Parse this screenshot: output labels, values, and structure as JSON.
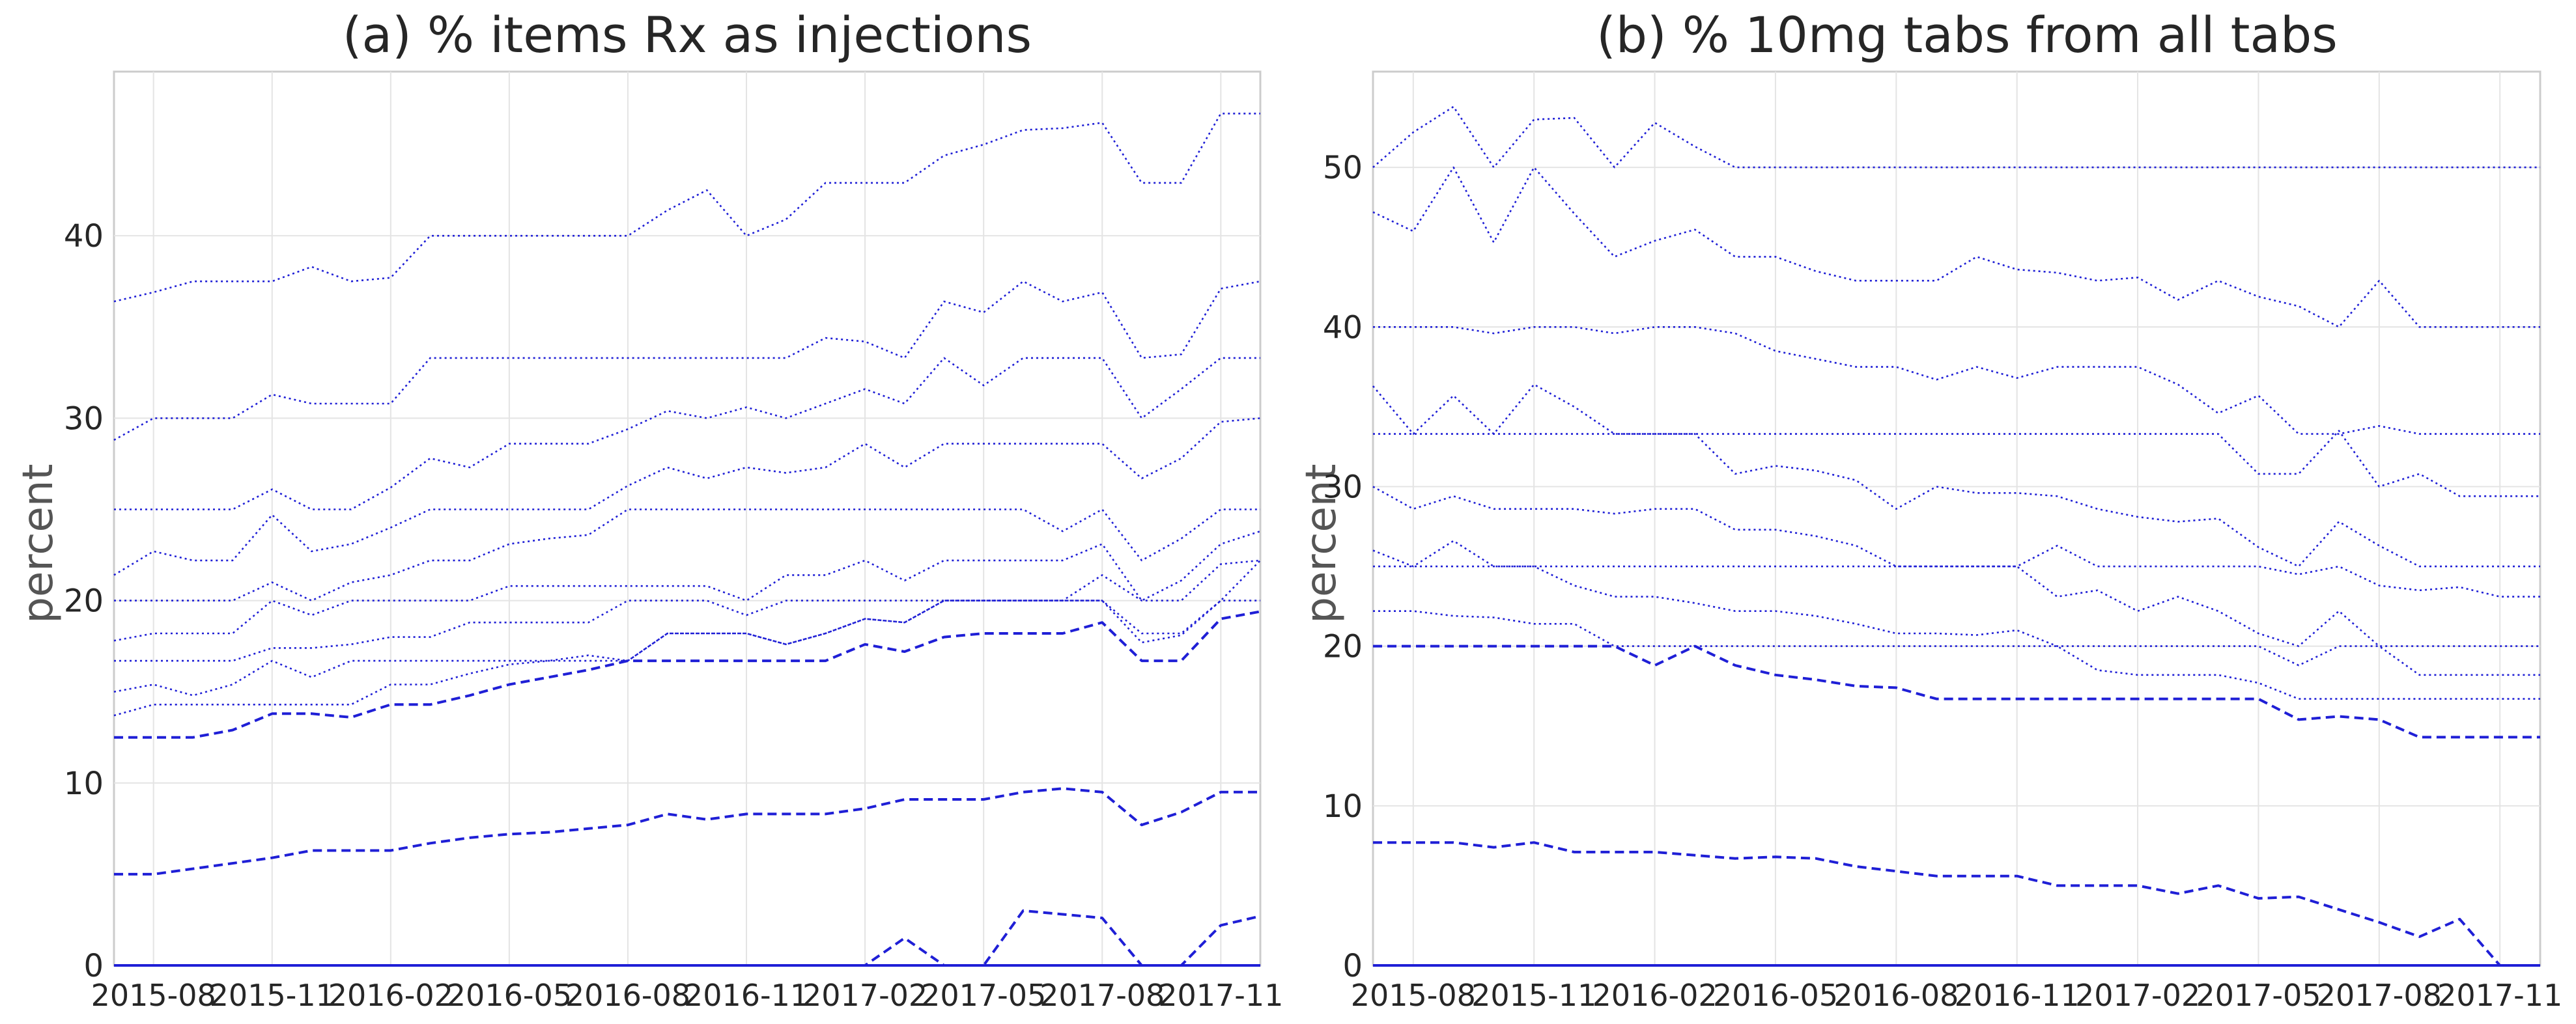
{
  "chart_data": [
    {
      "type": "line",
      "title": "(a) % items Rx as injections",
      "ylabel": "percent",
      "xlabel": "",
      "ylim": [
        0,
        49
      ],
      "yticks": [
        0,
        10,
        20,
        30,
        40
      ],
      "grid": true,
      "categories": [
        "2015-07",
        "2015-08",
        "2015-09",
        "2015-10",
        "2015-11",
        "2015-12",
        "2016-01",
        "2016-02",
        "2016-03",
        "2016-04",
        "2016-05",
        "2016-06",
        "2016-07",
        "2016-08",
        "2016-09",
        "2016-10",
        "2016-11",
        "2016-12",
        "2017-01",
        "2017-02",
        "2017-03",
        "2017-04",
        "2017-05",
        "2017-06",
        "2017-07",
        "2017-08",
        "2017-09",
        "2017-10",
        "2017-11",
        "2017-12"
      ],
      "xticklabels": [
        "2015-08",
        "2015-11",
        "2016-02",
        "2016-05",
        "2016-08",
        "2016-11",
        "2017-02",
        "2017-05",
        "2017-08",
        "2017-11"
      ],
      "series": [
        {
          "style": "solid",
          "values": [
            0,
            0,
            0,
            0,
            0,
            0,
            0,
            0,
            0,
            0,
            0,
            0,
            0,
            0,
            0,
            0,
            0,
            0,
            0,
            0,
            0,
            0,
            0,
            0,
            0,
            0,
            0,
            0,
            0,
            0
          ]
        },
        {
          "style": "dashed",
          "values": [
            0,
            0,
            0,
            0,
            0,
            0,
            0,
            0,
            0,
            0,
            0,
            0,
            0,
            0,
            0,
            0,
            0,
            0,
            0,
            0,
            1.5,
            0,
            0,
            3,
            2.8,
            2.6,
            0,
            0,
            2.2,
            2.7
          ]
        },
        {
          "style": "dashed",
          "values": [
            5,
            5,
            5.3,
            5.6,
            5.9,
            6.3,
            6.3,
            6.3,
            6.7,
            7,
            7.2,
            7.3,
            7.5,
            7.7,
            8.3,
            8,
            8.3,
            8.3,
            8.3,
            8.6,
            9.1,
            9.1,
            9.1,
            9.5,
            9.7,
            9.5,
            7.7,
            8.4,
            9.5,
            9.5
          ]
        },
        {
          "style": "dashed",
          "values": [
            12.5,
            12.5,
            12.5,
            12.9,
            13.8,
            13.8,
            13.6,
            14.3,
            14.3,
            14.8,
            15.4,
            15.8,
            16.2,
            16.7,
            16.7,
            16.7,
            16.7,
            16.7,
            16.7,
            17.6,
            17.2,
            18,
            18.2,
            18.2,
            18.2,
            18.8,
            16.7,
            16.7,
            19,
            19.4
          ]
        },
        {
          "style": "dotted",
          "values": [
            13.7,
            14.3,
            14.3,
            14.3,
            14.3,
            14.3,
            14.3,
            15.4,
            15.4,
            16,
            16.5,
            16.7,
            16.7,
            16.7,
            18.2,
            18.2,
            18.2,
            17.6,
            18.2,
            19,
            18.8,
            20,
            20,
            20,
            20,
            20,
            18.2,
            18.2,
            20,
            20
          ]
        },
        {
          "style": "dotted",
          "values": [
            15,
            15.4,
            14.8,
            15.4,
            16.7,
            15.8,
            16.7,
            16.7,
            16.7,
            16.7,
            16.7,
            16.7,
            17,
            16.7,
            18.2,
            18.2,
            18.2,
            17.6,
            18.2,
            19,
            18.8,
            20,
            20,
            20,
            20,
            20,
            17.7,
            18.1,
            20,
            22.2
          ]
        },
        {
          "style": "dotted",
          "values": [
            16.7,
            16.7,
            16.7,
            16.7,
            17.4,
            17.4,
            17.6,
            18,
            18,
            18.8,
            18.8,
            18.8,
            18.8,
            20,
            20,
            20,
            19.2,
            20,
            20,
            20,
            20,
            20,
            20,
            20,
            20,
            21.4,
            20,
            20,
            22,
            22.2
          ]
        },
        {
          "style": "dotted",
          "values": [
            17.8,
            18.2,
            18.2,
            18.2,
            20,
            19.2,
            20,
            20,
            20,
            20,
            20.8,
            20.8,
            20.8,
            20.8,
            20.8,
            20.8,
            20,
            21.4,
            21.4,
            22.2,
            21.1,
            22.2,
            22.2,
            22.2,
            22.2,
            23.1,
            20,
            21.1,
            23.1,
            23.8
          ]
        },
        {
          "style": "dotted",
          "values": [
            20,
            20,
            20,
            20,
            21,
            20,
            21,
            21.4,
            22.2,
            22.2,
            23.1,
            23.4,
            23.6,
            25,
            25,
            25,
            25,
            25,
            25,
            25,
            25,
            25,
            25,
            25,
            23.8,
            25,
            22.2,
            23.4,
            25,
            25
          ]
        },
        {
          "style": "dotted",
          "values": [
            21.4,
            22.7,
            22.2,
            22.2,
            24.7,
            22.7,
            23.1,
            24,
            25,
            25,
            25,
            25,
            25,
            26.3,
            27.3,
            26.7,
            27.3,
            27,
            27.3,
            28.6,
            27.3,
            28.6,
            28.6,
            28.6,
            28.6,
            28.6,
            26.7,
            27.8,
            29.8,
            30
          ]
        },
        {
          "style": "dotted",
          "values": [
            25,
            25,
            25,
            25,
            26.1,
            25,
            25,
            26.2,
            27.8,
            27.3,
            28.6,
            28.6,
            28.6,
            29.4,
            30.4,
            30,
            30.6,
            30,
            30.8,
            31.6,
            30.8,
            33.3,
            31.8,
            33.3,
            33.3,
            33.3,
            30,
            31.6,
            33.3,
            33.3
          ]
        },
        {
          "style": "dotted",
          "values": [
            28.8,
            30,
            30,
            30,
            31.3,
            30.8,
            30.8,
            30.8,
            33.3,
            33.3,
            33.3,
            33.3,
            33.3,
            33.3,
            33.3,
            33.3,
            33.3,
            33.3,
            34.4,
            34.2,
            33.3,
            36.4,
            35.8,
            37.5,
            36.4,
            36.9,
            33.3,
            33.5,
            37.1,
            37.5
          ]
        },
        {
          "style": "dotted",
          "values": [
            36.4,
            36.9,
            37.5,
            37.5,
            37.5,
            38.3,
            37.5,
            37.7,
            40,
            40,
            40,
            40,
            40,
            40,
            41.4,
            42.5,
            40,
            40.9,
            42.9,
            42.9,
            42.9,
            44.4,
            45,
            45.8,
            45.9,
            46.2,
            42.9,
            42.9,
            46.7,
            46.7
          ]
        }
      ]
    },
    {
      "type": "line",
      "title": "(b) % 10mg tabs from all tabs",
      "ylabel": "percent",
      "xlabel": "",
      "ylim": [
        0,
        56
      ],
      "yticks": [
        0,
        10,
        20,
        30,
        40,
        50
      ],
      "grid": true,
      "categories": [
        "2015-07",
        "2015-08",
        "2015-09",
        "2015-10",
        "2015-11",
        "2015-12",
        "2016-01",
        "2016-02",
        "2016-03",
        "2016-04",
        "2016-05",
        "2016-06",
        "2016-07",
        "2016-08",
        "2016-09",
        "2016-10",
        "2016-11",
        "2016-12",
        "2017-01",
        "2017-02",
        "2017-03",
        "2017-04",
        "2017-05",
        "2017-06",
        "2017-07",
        "2017-08",
        "2017-09",
        "2017-10",
        "2017-11",
        "2017-12"
      ],
      "xticklabels": [
        "2015-08",
        "2015-11",
        "2016-02",
        "2016-05",
        "2016-08",
        "2016-11",
        "2017-02",
        "2017-05",
        "2017-08",
        "2017-11"
      ],
      "series": [
        {
          "style": "solid",
          "values": [
            0,
            0,
            0,
            0,
            0,
            0,
            0,
            0,
            0,
            0,
            0,
            0,
            0,
            0,
            0,
            0,
            0,
            0,
            0,
            0,
            0,
            0,
            0,
            0,
            0,
            0,
            0,
            0,
            0,
            0
          ]
        },
        {
          "style": "dashed",
          "values": [
            7.7,
            7.7,
            7.7,
            7.4,
            7.7,
            7.1,
            7.1,
            7.1,
            6.9,
            6.7,
            6.8,
            6.7,
            6.2,
            5.9,
            5.6,
            5.6,
            5.6,
            5,
            5,
            5,
            4.5,
            5,
            4.2,
            4.3,
            3.5,
            2.7,
            1.8,
            2.9,
            0,
            0
          ]
        },
        {
          "style": "dashed",
          "values": [
            20,
            20,
            20,
            20,
            20,
            20,
            20,
            18.8,
            20,
            18.8,
            18.2,
            17.9,
            17.5,
            17.4,
            16.7,
            16.7,
            16.7,
            16.7,
            16.7,
            16.7,
            16.7,
            16.7,
            16.7,
            15.4,
            15.6,
            15.4,
            14.3,
            14.3,
            14.3,
            14.3
          ]
        },
        {
          "style": "dotted",
          "values": [
            22.2,
            22.2,
            21.9,
            21.8,
            21.4,
            21.4,
            20,
            20,
            20,
            20,
            20,
            20,
            20,
            20,
            20,
            20,
            20,
            20,
            18.5,
            18.2,
            18.2,
            18.2,
            17.7,
            16.7,
            16.7,
            16.7,
            16.7,
            16.7,
            16.7,
            16.7
          ]
        },
        {
          "style": "dotted",
          "values": [
            26,
            25,
            26.6,
            25,
            25,
            23.8,
            23.1,
            23.1,
            22.7,
            22.2,
            22.2,
            21.9,
            21.4,
            20.8,
            20.8,
            20.7,
            21,
            20,
            20,
            20,
            20,
            20,
            20,
            18.8,
            20,
            20,
            18.2,
            18.2,
            18.2,
            18.2
          ]
        },
        {
          "style": "dotted",
          "values": [
            25,
            25,
            25,
            25,
            25,
            25,
            25,
            25,
            25,
            25,
            25,
            25,
            25,
            25,
            25,
            25,
            25,
            26.3,
            25,
            25,
            25,
            25,
            25,
            24.5,
            25,
            23.8,
            23.5,
            23.7,
            23.1,
            23.1
          ]
        },
        {
          "style": "dotted",
          "values": [
            30,
            28.6,
            29.4,
            28.6,
            28.6,
            28.6,
            28.3,
            28.6,
            28.6,
            27.3,
            27.3,
            26.9,
            26.3,
            25,
            25,
            25,
            25,
            23.1,
            23.5,
            22.2,
            23.1,
            22.2,
            20.8,
            20,
            22.2,
            20,
            20,
            20,
            20,
            20
          ]
        },
        {
          "style": "dotted",
          "values": [
            36.3,
            33.3,
            35.7,
            33.3,
            36.4,
            35,
            33.3,
            33.3,
            33.3,
            30.8,
            31.3,
            31,
            30.4,
            28.6,
            30,
            29.6,
            29.6,
            29.4,
            28.6,
            28.1,
            27.8,
            28,
            26.2,
            25,
            27.8,
            26.3,
            25,
            25,
            25,
            25
          ]
        },
        {
          "style": "dotted",
          "values": [
            33.3,
            33.3,
            33.3,
            33.3,
            33.3,
            33.3,
            33.3,
            33.3,
            33.3,
            33.3,
            33.3,
            33.3,
            33.3,
            33.3,
            33.3,
            33.3,
            33.3,
            33.3,
            33.3,
            33.3,
            33.3,
            33.3,
            30.8,
            30.8,
            33.5,
            30,
            30.8,
            29.4,
            29.4,
            29.4
          ]
        },
        {
          "style": "dotted",
          "values": [
            40,
            40,
            40,
            39.6,
            40,
            40,
            39.6,
            40,
            40,
            39.6,
            38.5,
            38,
            37.5,
            37.5,
            36.7,
            37.5,
            36.8,
            37.5,
            37.5,
            37.5,
            36.4,
            34.6,
            35.7,
            33.3,
            33.3,
            33.8,
            33.3,
            33.3,
            33.3,
            33.3
          ]
        },
        {
          "style": "dotted",
          "values": [
            47.2,
            46,
            50,
            45.3,
            50,
            47.1,
            44.4,
            45.4,
            46.1,
            44.4,
            44.4,
            43.5,
            42.9,
            42.9,
            42.9,
            44.4,
            43.6,
            43.4,
            42.9,
            43.1,
            41.7,
            42.9,
            41.9,
            41.3,
            40,
            42.9,
            40,
            40,
            40,
            40
          ]
        },
        {
          "style": "dotted",
          "values": [
            50,
            52.2,
            53.8,
            50,
            53,
            53.1,
            50,
            52.8,
            51.3,
            50,
            50,
            50,
            50,
            50,
            50,
            50,
            50,
            50,
            50,
            50,
            50,
            50,
            50,
            50,
            50,
            50,
            50,
            50,
            50,
            50
          ]
        }
      ]
    }
  ]
}
